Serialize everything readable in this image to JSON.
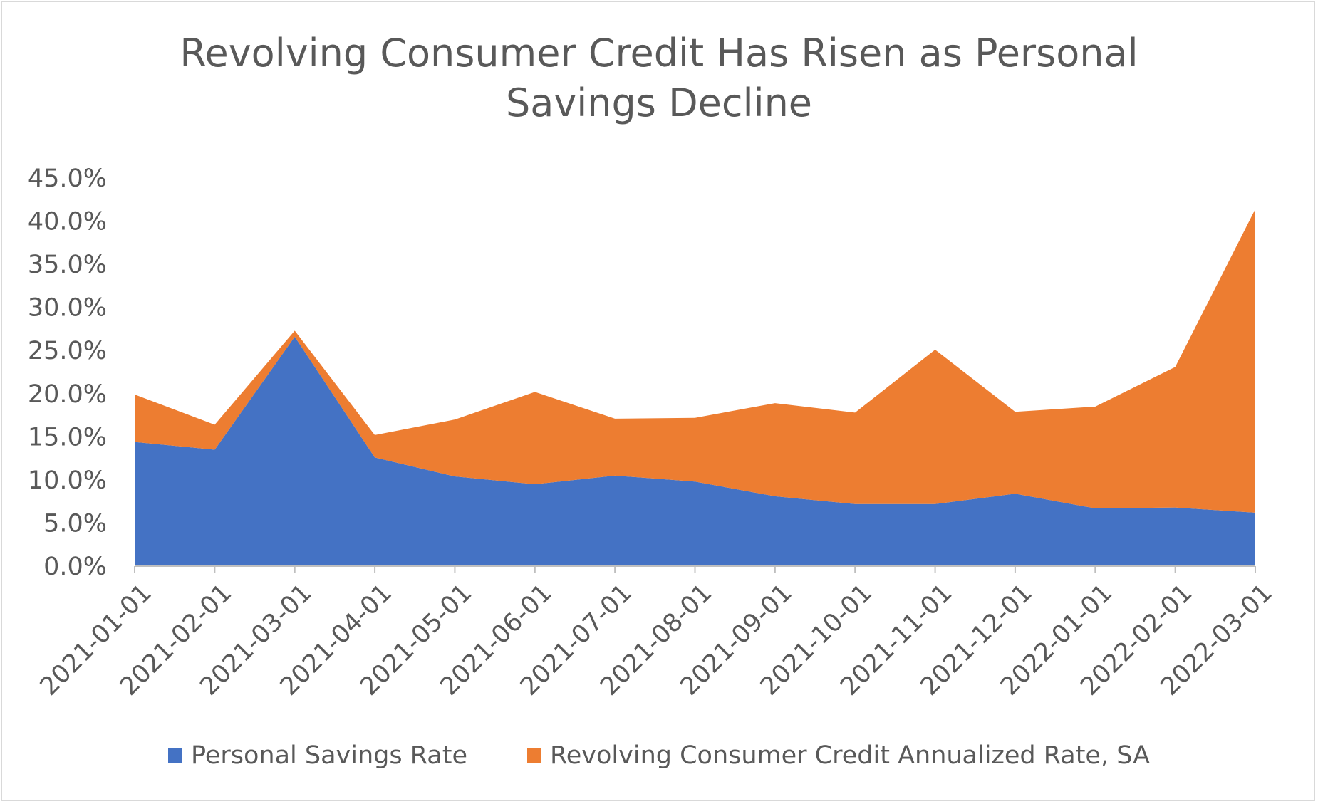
{
  "colors": {
    "savings": "#4472c4",
    "credit": "#ed7d31",
    "axis": "#bfbfbf",
    "text": "#595959"
  },
  "chart_data": {
    "type": "area",
    "stacked": true,
    "title_lines": [
      "Revolving Consumer Credit Has Risen as Personal",
      "Savings Decline"
    ],
    "xlabel": "",
    "ylabel": "",
    "x": [
      "2021-01-01",
      "2021-02-01",
      "2021-03-01",
      "2021-04-01",
      "2021-05-01",
      "2021-06-01",
      "2021-07-01",
      "2021-08-01",
      "2021-09-01",
      "2021-10-01",
      "2021-11-01",
      "2021-12-01",
      "2022-01-01",
      "2022-02-01",
      "2022-03-01"
    ],
    "y_ticks": [
      "0.0%",
      "5.0%",
      "10.0%",
      "15.0%",
      "20.0%",
      "25.0%",
      "30.0%",
      "35.0%",
      "40.0%",
      "45.0%"
    ],
    "ylim": [
      0,
      45
    ],
    "grid": false,
    "legend_position": "bottom",
    "series": [
      {
        "name": "Personal Savings Rate",
        "color_key": "savings",
        "values": [
          14.4,
          13.5,
          26.6,
          12.6,
          10.4,
          9.5,
          10.5,
          9.8,
          8.1,
          7.2,
          7.2,
          8.4,
          6.7,
          6.8,
          6.2
        ]
      },
      {
        "name": "Revolving Consumer Credit Annualized Rate, SA",
        "color_key": "credit",
        "values": [
          5.5,
          2.9,
          0.7,
          2.6,
          6.6,
          10.7,
          6.6,
          7.4,
          10.8,
          10.6,
          17.9,
          9.5,
          11.8,
          16.3,
          35.2
        ]
      }
    ]
  }
}
